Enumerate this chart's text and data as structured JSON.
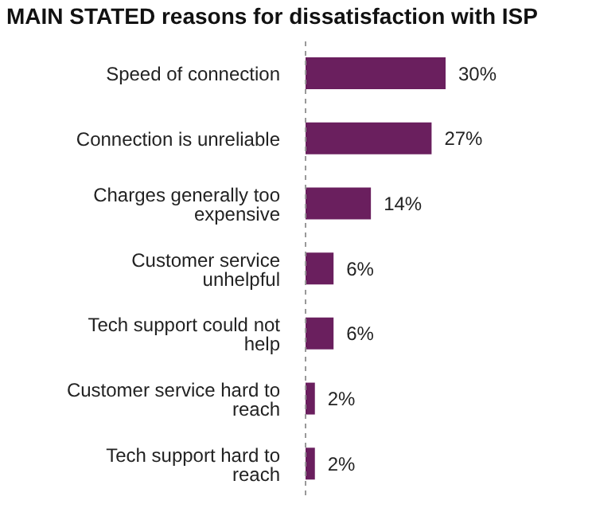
{
  "chart_data": {
    "type": "bar",
    "orientation": "horizontal",
    "title": "MAIN STATED reasons for dissatisfaction with ISP",
    "categories": [
      "Speed of connection",
      "Connection is unreliable",
      "Charges generally too expensive",
      "Customer service unhelpful",
      "Tech support could not help",
      "Customer service hard to reach",
      "Tech support hard to reach"
    ],
    "values": [
      30,
      27,
      14,
      6,
      6,
      2,
      2
    ],
    "value_labels": [
      "30%",
      "27%",
      "14%",
      "6%",
      "6%",
      "2%",
      "2%"
    ],
    "color": "#6a1f5e"
  }
}
